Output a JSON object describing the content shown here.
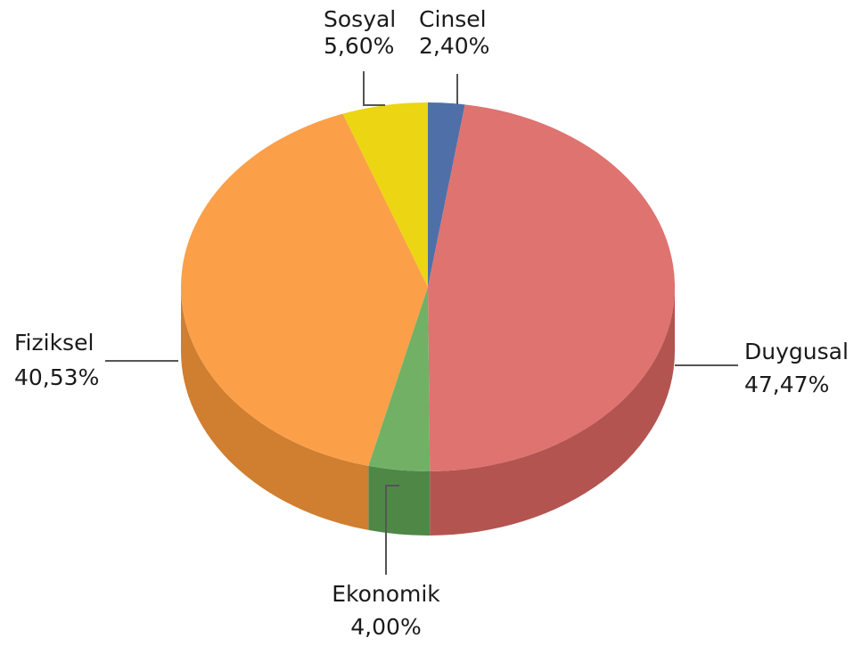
{
  "chart_data": {
    "type": "pie",
    "style": "3d",
    "slices": [
      {
        "name": "Cinsel",
        "value": 2.4,
        "label": "2,40%",
        "color": "#4f6fa8",
        "side_color": "#3a5583"
      },
      {
        "name": "Duygusal",
        "value": 47.47,
        "label": "47,47%",
        "color": "#de7370",
        "side_color": "#b35451"
      },
      {
        "name": "Ekonomik",
        "value": 4.0,
        "label": "4,00%",
        "color": "#72b066",
        "side_color": "#4f8747"
      },
      {
        "name": "Fiziksel",
        "value": 40.53,
        "label": "40,53%",
        "color": "#fba049",
        "side_color": "#d07e30"
      },
      {
        "name": "Sosyal",
        "value": 5.6,
        "label": "5,60%",
        "color": "#ecd512",
        "side_color": "#bba810"
      }
    ]
  }
}
